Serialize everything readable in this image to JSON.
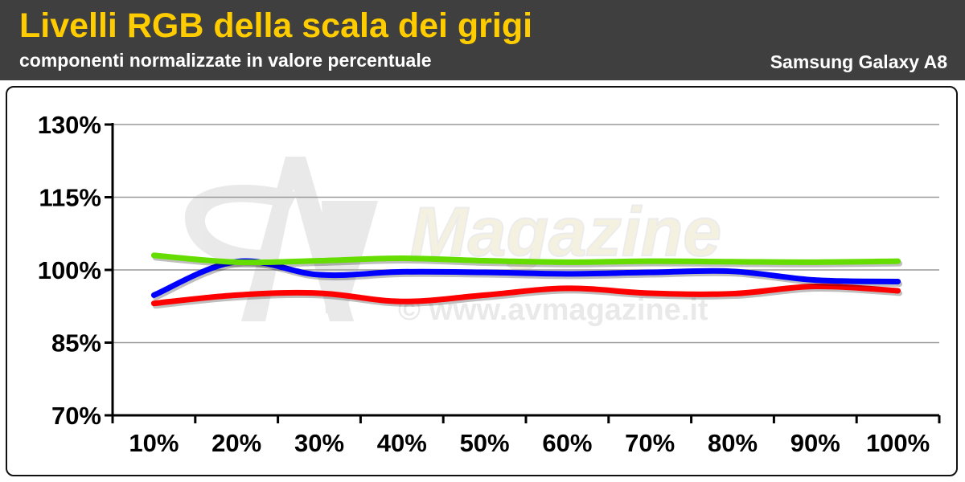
{
  "header": {
    "title": "Livelli RGB della scala dei grigi",
    "subtitle": "componenti normalizzate in valore percentuale",
    "device": "Samsung Galaxy A8"
  },
  "watermark": {
    "brand": "Magazine",
    "url": "© www.avmagazine.it"
  },
  "colors": {
    "header_bg": "#3f3f3f",
    "title": "#ffcc00",
    "red": "#ff0000",
    "green": "#66dd00",
    "blue": "#0000ff",
    "grid": "#999999"
  },
  "chart_data": {
    "type": "line",
    "categories": [
      "10%",
      "20%",
      "30%",
      "40%",
      "50%",
      "60%",
      "70%",
      "80%",
      "90%",
      "100%"
    ],
    "ylim": [
      70,
      130
    ],
    "yticks": [
      70,
      85,
      100,
      115,
      130
    ],
    "ytick_labels": [
      "70%",
      "85%",
      "100%",
      "115%",
      "130%"
    ],
    "grid": true,
    "legend": "none",
    "series": [
      {
        "color": "red",
        "values": [
          93.1,
          94.8,
          95.2,
          93.5,
          94.8,
          96.2,
          95.2,
          95.1,
          96.6,
          95.7
        ]
      },
      {
        "color": "blue",
        "values": [
          94.8,
          101.7,
          99.0,
          99.6,
          99.5,
          99.2,
          99.5,
          99.7,
          97.9,
          97.6
        ]
      },
      {
        "color": "green",
        "values": [
          103.0,
          101.6,
          101.9,
          102.4,
          101.9,
          101.6,
          101.8,
          101.7,
          101.6,
          101.8
        ]
      }
    ]
  }
}
